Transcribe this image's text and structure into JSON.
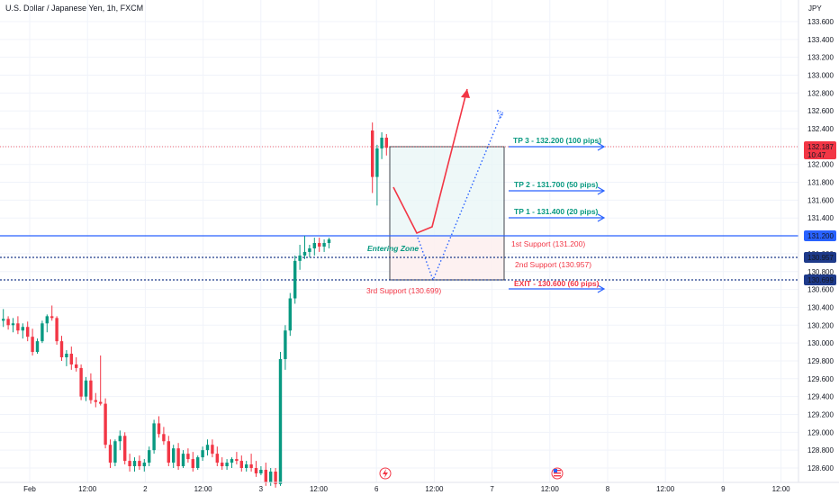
{
  "chart_title": "U.S. Dollar / Japanese Yen, 1h, FXCM",
  "chart_data": {
    "type": "candlestick",
    "title": "U.S. Dollar / Japanese Yen, 1h, FXCM",
    "currency_label": "JPY",
    "ylim": [
      128.52,
      133.8
    ],
    "y_ticks": [
      "133.600",
      "133.400",
      "133.200",
      "133.000",
      "132.800",
      "132.600",
      "132.400",
      "132.200",
      "132.000",
      "131.800",
      "131.600",
      "131.400",
      "131.200",
      "131.000",
      "130.800",
      "130.600",
      "130.400",
      "130.200",
      "130.000",
      "129.800",
      "129.600",
      "129.400",
      "129.200",
      "129.000",
      "128.800",
      "128.600"
    ],
    "x_ticks": [
      "Feb",
      "12:00",
      "2",
      "12:00",
      "3",
      "12:00",
      "6",
      "12:00",
      "7",
      "12:00",
      "8",
      "12:00",
      "9",
      "12:00"
    ],
    "last_price": {
      "value": "132.187",
      "countdown": "10:47",
      "color": "#f23645"
    },
    "price_labels": [
      {
        "value": "131.200",
        "color": "#2962ff"
      },
      {
        "value": "130.957",
        "color": "#1e3a8a"
      },
      {
        "value": "130.699",
        "color": "#1e3a8a"
      }
    ],
    "candles": [
      {
        "o": 130.25,
        "h": 130.38,
        "l": 130.18,
        "c": 130.27
      },
      {
        "o": 130.27,
        "h": 130.3,
        "l": 130.15,
        "c": 130.2
      },
      {
        "o": 130.2,
        "h": 130.28,
        "l": 130.12,
        "c": 130.22
      },
      {
        "o": 130.22,
        "h": 130.3,
        "l": 130.1,
        "c": 130.14
      },
      {
        "o": 130.14,
        "h": 130.22,
        "l": 130.05,
        "c": 130.18
      },
      {
        "o": 130.18,
        "h": 130.24,
        "l": 130.02,
        "c": 130.07
      },
      {
        "o": 130.07,
        "h": 130.16,
        "l": 129.86,
        "c": 129.9
      },
      {
        "o": 129.9,
        "h": 130.05,
        "l": 129.88,
        "c": 130.02
      },
      {
        "o": 130.02,
        "h": 130.25,
        "l": 130.0,
        "c": 130.22
      },
      {
        "o": 130.22,
        "h": 130.32,
        "l": 130.12,
        "c": 130.3
      },
      {
        "o": 130.3,
        "h": 130.42,
        "l": 130.25,
        "c": 130.28
      },
      {
        "o": 130.28,
        "h": 130.3,
        "l": 129.98,
        "c": 130.02
      },
      {
        "o": 130.02,
        "h": 130.08,
        "l": 129.8,
        "c": 129.84
      },
      {
        "o": 129.84,
        "h": 129.92,
        "l": 129.74,
        "c": 129.88
      },
      {
        "o": 129.88,
        "h": 129.96,
        "l": 129.7,
        "c": 129.76
      },
      {
        "o": 129.76,
        "h": 129.84,
        "l": 129.68,
        "c": 129.72
      },
      {
        "o": 129.72,
        "h": 129.76,
        "l": 129.36,
        "c": 129.4
      },
      {
        "o": 129.4,
        "h": 129.62,
        "l": 129.35,
        "c": 129.58
      },
      {
        "o": 129.58,
        "h": 129.66,
        "l": 129.32,
        "c": 129.36
      },
      {
        "o": 129.36,
        "h": 129.44,
        "l": 129.28,
        "c": 129.34
      },
      {
        "o": 129.34,
        "h": 129.86,
        "l": 129.3,
        "c": 129.32
      },
      {
        "o": 129.32,
        "h": 129.38,
        "l": 128.82,
        "c": 128.86
      },
      {
        "o": 128.86,
        "h": 128.92,
        "l": 128.6,
        "c": 128.66
      },
      {
        "o": 128.66,
        "h": 128.92,
        "l": 128.62,
        "c": 128.9
      },
      {
        "o": 128.9,
        "h": 129.02,
        "l": 128.8,
        "c": 128.96
      },
      {
        "o": 128.96,
        "h": 129.0,
        "l": 128.64,
        "c": 128.68
      },
      {
        "o": 128.68,
        "h": 128.76,
        "l": 128.56,
        "c": 128.62
      },
      {
        "o": 128.62,
        "h": 128.72,
        "l": 128.56,
        "c": 128.68
      },
      {
        "o": 128.68,
        "h": 128.74,
        "l": 128.58,
        "c": 128.62
      },
      {
        "o": 128.62,
        "h": 128.7,
        "l": 128.56,
        "c": 128.66
      },
      {
        "o": 128.66,
        "h": 128.84,
        "l": 128.62,
        "c": 128.8
      },
      {
        "o": 128.8,
        "h": 129.14,
        "l": 128.76,
        "c": 129.1
      },
      {
        "o": 129.1,
        "h": 129.18,
        "l": 128.94,
        "c": 128.98
      },
      {
        "o": 128.98,
        "h": 129.06,
        "l": 128.86,
        "c": 128.9
      },
      {
        "o": 128.9,
        "h": 128.96,
        "l": 128.62,
        "c": 128.66
      },
      {
        "o": 128.66,
        "h": 128.86,
        "l": 128.6,
        "c": 128.82
      },
      {
        "o": 128.82,
        "h": 128.88,
        "l": 128.58,
        "c": 128.62
      },
      {
        "o": 128.62,
        "h": 128.8,
        "l": 128.6,
        "c": 128.76
      },
      {
        "o": 128.76,
        "h": 128.82,
        "l": 128.66,
        "c": 128.7
      },
      {
        "o": 128.7,
        "h": 128.78,
        "l": 128.56,
        "c": 128.6
      },
      {
        "o": 128.6,
        "h": 128.74,
        "l": 128.58,
        "c": 128.72
      },
      {
        "o": 128.72,
        "h": 128.84,
        "l": 128.68,
        "c": 128.8
      },
      {
        "o": 128.8,
        "h": 128.92,
        "l": 128.74,
        "c": 128.86
      },
      {
        "o": 128.86,
        "h": 128.92,
        "l": 128.72,
        "c": 128.76
      },
      {
        "o": 128.76,
        "h": 128.84,
        "l": 128.62,
        "c": 128.66
      },
      {
        "o": 128.66,
        "h": 128.72,
        "l": 128.58,
        "c": 128.62
      },
      {
        "o": 128.62,
        "h": 128.7,
        "l": 128.58,
        "c": 128.66
      },
      {
        "o": 128.66,
        "h": 128.72,
        "l": 128.6,
        "c": 128.7
      },
      {
        "o": 128.7,
        "h": 128.78,
        "l": 128.64,
        "c": 128.68
      },
      {
        "o": 128.68,
        "h": 128.74,
        "l": 128.56,
        "c": 128.6
      },
      {
        "o": 128.6,
        "h": 128.68,
        "l": 128.56,
        "c": 128.64
      },
      {
        "o": 128.64,
        "h": 128.76,
        "l": 128.56,
        "c": 128.6
      },
      {
        "o": 128.6,
        "h": 128.68,
        "l": 128.5,
        "c": 128.54
      },
      {
        "o": 128.54,
        "h": 128.62,
        "l": 128.52,
        "c": 128.58
      },
      {
        "o": 128.58,
        "h": 128.66,
        "l": 128.4,
        "c": 128.44
      },
      {
        "o": 128.44,
        "h": 128.6,
        "l": 128.4,
        "c": 128.56
      },
      {
        "o": 128.56,
        "h": 128.6,
        "l": 128.38,
        "c": 128.42
      },
      {
        "o": 128.42,
        "h": 129.9,
        "l": 128.4,
        "c": 129.82
      },
      {
        "o": 129.82,
        "h": 130.2,
        "l": 129.7,
        "c": 130.14
      },
      {
        "o": 130.14,
        "h": 130.56,
        "l": 130.08,
        "c": 130.5
      },
      {
        "o": 130.5,
        "h": 130.98,
        "l": 130.44,
        "c": 130.92
      },
      {
        "o": 130.92,
        "h": 131.1,
        "l": 130.82,
        "c": 130.98
      },
      {
        "o": 130.98,
        "h": 131.2,
        "l": 130.94,
        "c": 131.02
      },
      {
        "o": 131.02,
        "h": 131.1,
        "l": 130.96,
        "c": 131.06
      },
      {
        "o": 131.06,
        "h": 131.18,
        "l": 130.98,
        "c": 131.12
      },
      {
        "o": 131.12,
        "h": 131.18,
        "l": 131.02,
        "c": 131.08
      },
      {
        "o": 131.08,
        "h": 131.16,
        "l": 131.02,
        "c": 131.12
      },
      {
        "o": 131.12,
        "h": 131.18,
        "l": 131.06,
        "c": 131.16
      },
      {
        "o": 132.38,
        "h": 132.47,
        "l": 131.68,
        "c": 131.86
      },
      {
        "o": 131.86,
        "h": 132.22,
        "l": 131.54,
        "c": 132.18
      },
      {
        "o": 132.18,
        "h": 132.36,
        "l": 132.06,
        "c": 132.3
      },
      {
        "o": 132.3,
        "h": 132.34,
        "l": 132.1,
        "c": 132.187
      }
    ]
  },
  "annotations": {
    "tp3": "TP 3 - 132.200 (100 pips)",
    "tp2": "TP 2 - 131.700 (50 pips)",
    "tp1": "TP 1 - 131.400 (20 pips)",
    "support1": "1st Support (131.200)",
    "support2": "2nd Support (130.957)",
    "support3": "3rd Support (130.699)",
    "exit": "EXIT - 130.600 (60 pips)",
    "entering_zone": "Entering Zone"
  },
  "colors": {
    "up": "#089981",
    "down": "#f23645",
    "support_line": "#2962ff",
    "dotted_line": "#1e3a8a",
    "annotation_green": "#089981",
    "annotation_red": "#f23645",
    "arrow_blue": "#2962ff"
  },
  "icons": [
    "lightning-event-icon",
    "us-flag-event-icon"
  ]
}
